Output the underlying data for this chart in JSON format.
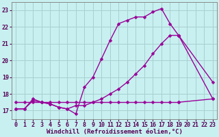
{
  "bg_color": "#c8f0f0",
  "grid_color": "#a8d0d0",
  "line_color": "#990099",
  "line_width": 1.0,
  "marker": "D",
  "marker_size": 2.5,
  "xlim": [
    -0.5,
    23.5
  ],
  "ylim": [
    16.5,
    23.5
  ],
  "yticks": [
    17,
    18,
    19,
    20,
    21,
    22,
    23
  ],
  "xticks": [
    0,
    1,
    2,
    3,
    4,
    5,
    6,
    7,
    8,
    9,
    10,
    11,
    12,
    13,
    14,
    15,
    16,
    17,
    18,
    19,
    20,
    21,
    22,
    23
  ],
  "series1_x": [
    0,
    1,
    2,
    3,
    4,
    5,
    6,
    7,
    8,
    9,
    10,
    11,
    12,
    13,
    14,
    15,
    16,
    17,
    18,
    19,
    23
  ],
  "series1_y": [
    17.1,
    17.1,
    17.6,
    17.5,
    17.4,
    17.2,
    17.1,
    16.8,
    18.4,
    19.0,
    20.1,
    21.2,
    22.2,
    22.4,
    22.6,
    22.6,
    22.9,
    23.1,
    22.2,
    21.5,
    17.7
  ],
  "series2_x": [
    0,
    1,
    2,
    3,
    4,
    5,
    6,
    7,
    8,
    9,
    10,
    11,
    12,
    13,
    14,
    15,
    16,
    17,
    18,
    19,
    23
  ],
  "series2_y": [
    17.1,
    17.1,
    17.7,
    17.5,
    17.4,
    17.2,
    17.1,
    17.3,
    17.3,
    17.5,
    17.7,
    18.0,
    18.3,
    18.7,
    19.2,
    19.7,
    20.4,
    21.0,
    21.5,
    21.5,
    18.7
  ],
  "series3_x": [
    0,
    1,
    2,
    3,
    4,
    5,
    6,
    7,
    8,
    9,
    10,
    11,
    12,
    13,
    14,
    15,
    16,
    17,
    18,
    19,
    23
  ],
  "series3_y": [
    17.5,
    17.5,
    17.5,
    17.5,
    17.5,
    17.5,
    17.5,
    17.5,
    17.5,
    17.5,
    17.5,
    17.5,
    17.5,
    17.5,
    17.5,
    17.5,
    17.5,
    17.5,
    17.5,
    17.5,
    17.7
  ],
  "xlabel": "Windchill (Refroidissement éolien,°C)",
  "xlabel_fontsize": 6.5,
  "tick_fontsize": 6.0
}
